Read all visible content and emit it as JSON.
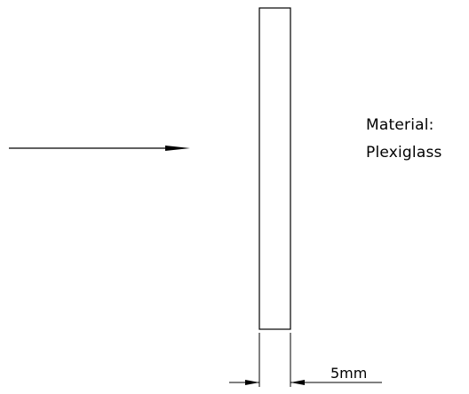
{
  "diagram": {
    "material_line1": "Material:",
    "material_line2": "Plexiglass",
    "dimension_label": "5mm",
    "stroke_color": "#000000",
    "background_color": "#ffffff"
  }
}
